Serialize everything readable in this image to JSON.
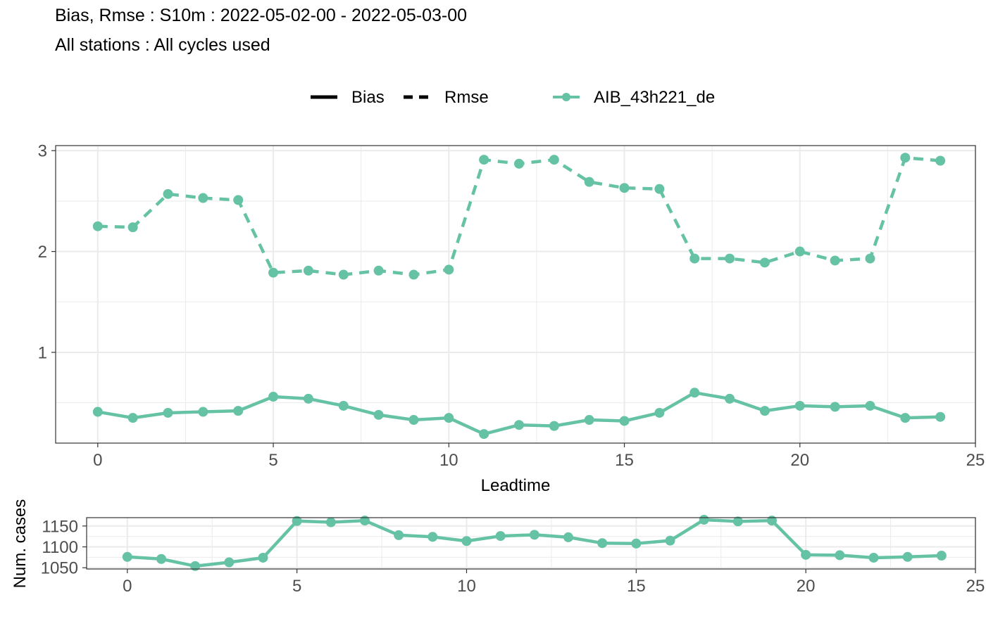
{
  "header": {
    "title": "Bias, Rmse : S10m : 2022-05-02-00 - 2022-05-03-00",
    "subtitle": "All stations : All cycles used"
  },
  "legend": {
    "bias_label": "Bias",
    "rmse_label": "Rmse",
    "model_label": "AIB_43h221_de"
  },
  "colors": {
    "series": "#66c2a5",
    "grid": "#ebebeb",
    "axis_text": "#4d4d4d",
    "panel_border": "#333333"
  },
  "chart_data": [
    {
      "type": "line",
      "xlabel": "Leadtime",
      "ylabel": "",
      "xlim": [
        -1.2,
        25
      ],
      "ylim": [
        0.1,
        3.05
      ],
      "x_ticks": [
        0,
        5,
        10,
        15,
        20,
        25
      ],
      "y_ticks": [
        1,
        2,
        3
      ],
      "grid": true,
      "legend_position": "top",
      "x": [
        0,
        1,
        2,
        3,
        4,
        5,
        6,
        7,
        8,
        9,
        10,
        11,
        12,
        13,
        14,
        15,
        16,
        17,
        18,
        19,
        20,
        21,
        22,
        23,
        24
      ],
      "series": [
        {
          "name": "AIB_43h221_de",
          "statistic": "Bias",
          "line_style": "solid",
          "values": [
            0.41,
            0.35,
            0.4,
            0.41,
            0.42,
            0.56,
            0.54,
            0.47,
            0.38,
            0.33,
            0.35,
            0.19,
            0.28,
            0.27,
            0.33,
            0.32,
            0.4,
            0.6,
            0.54,
            0.42,
            0.47,
            0.46,
            0.47,
            0.35,
            0.36
          ]
        },
        {
          "name": "AIB_43h221_de",
          "statistic": "Rmse",
          "line_style": "dashed",
          "values": [
            2.25,
            2.24,
            2.57,
            2.53,
            2.51,
            1.79,
            1.81,
            1.77,
            1.81,
            1.77,
            1.82,
            2.91,
            2.87,
            2.91,
            2.69,
            2.63,
            2.62,
            1.93,
            1.93,
            1.89,
            2.0,
            1.91,
            1.93,
            2.93,
            2.9
          ]
        }
      ]
    },
    {
      "type": "line",
      "xlabel": "",
      "ylabel": "Num. cases",
      "xlim": [
        -1.2,
        25
      ],
      "ylim": [
        1047,
        1170
      ],
      "x_ticks": [
        0,
        5,
        10,
        15,
        20,
        25
      ],
      "y_ticks": [
        1050,
        1100,
        1150
      ],
      "grid": true,
      "x": [
        0,
        1,
        2,
        3,
        4,
        5,
        6,
        7,
        8,
        9,
        10,
        11,
        12,
        13,
        14,
        15,
        16,
        17,
        18,
        19,
        20,
        21,
        22,
        23,
        24
      ],
      "series": [
        {
          "name": "AIB_43h221_de",
          "values": [
            1076,
            1071,
            1054,
            1063,
            1074,
            1162,
            1159,
            1163,
            1128,
            1124,
            1114,
            1126,
            1129,
            1123,
            1109,
            1108,
            1115,
            1165,
            1161,
            1163,
            1081,
            1080,
            1074,
            1076,
            1079
          ]
        }
      ]
    }
  ]
}
